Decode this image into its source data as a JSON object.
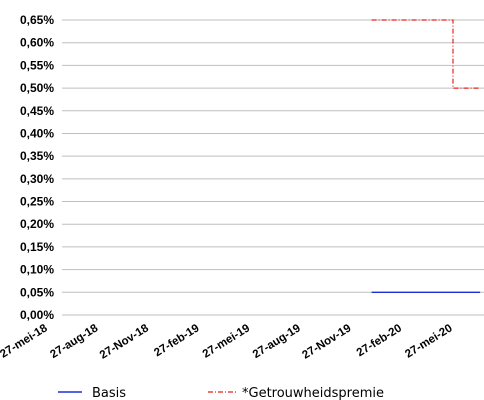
{
  "chart_data": {
    "type": "line",
    "title": "",
    "xlabel": "",
    "ylabel": "",
    "y_ticks": [
      "0,00%",
      "0,05%",
      "0,10%",
      "0,15%",
      "0,20%",
      "0,25%",
      "0,30%",
      "0,35%",
      "0,40%",
      "0,45%",
      "0,50%",
      "0,55%",
      "0,60%",
      "0,65%"
    ],
    "ylim": [
      0,
      0.65
    ],
    "x_ticks": [
      "27-mei-18",
      "27-aug-18",
      "27-Nov-18",
      "27-feb-19",
      "27-mei-19",
      "27-aug-19",
      "27-Nov-19",
      "27-feb-20",
      "27-mei-20"
    ],
    "grid": true,
    "legend_position": "bottom",
    "series": [
      {
        "name": "Basis",
        "color": "#1f2fd6",
        "style": "solid",
        "points": [
          {
            "x": "2020-01-01",
            "y": 0.05
          },
          {
            "x": "2020-07-15",
            "y": 0.05
          }
        ]
      },
      {
        "name": "*Getrouwheidspremie",
        "color": "#e8231f",
        "style": "dash-dot",
        "points": [
          {
            "x": "2020-01-01",
            "y": 0.65
          },
          {
            "x": "2020-05-27",
            "y": 0.65
          },
          {
            "x": "2020-05-27",
            "y": 0.5
          },
          {
            "x": "2020-07-15",
            "y": 0.5
          }
        ]
      }
    ]
  }
}
